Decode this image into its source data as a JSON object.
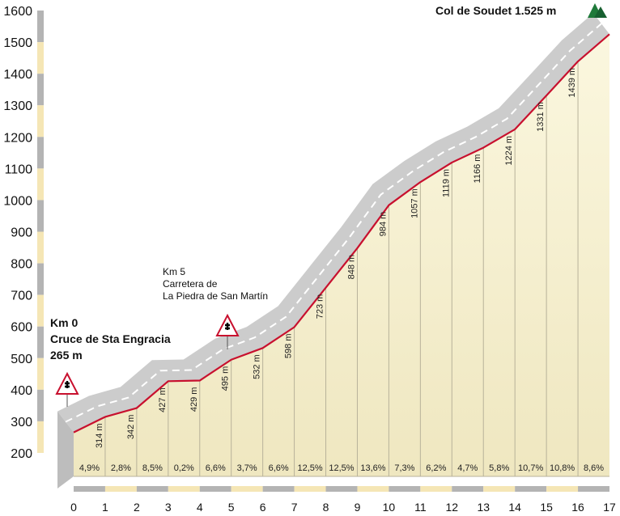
{
  "chart_data": {
    "type": "area",
    "title": "",
    "xlabel": "",
    "ylabel": "",
    "xlim": [
      0,
      17
    ],
    "ylim": [
      200,
      1600
    ],
    "y_ticks": [
      "1600",
      "1500",
      "1400",
      "1300",
      "1200",
      "1100",
      "1000",
      "900",
      "800",
      "700",
      "600",
      "500",
      "400",
      "300",
      "200"
    ],
    "x_ticks": [
      "0",
      "1",
      "2",
      "3",
      "4",
      "5",
      "6",
      "7",
      "8",
      "9",
      "10",
      "11",
      "12",
      "13",
      "14",
      "15",
      "16",
      "17"
    ],
    "x": [
      0,
      1,
      2,
      3,
      4,
      5,
      6,
      7,
      8,
      9,
      10,
      11,
      12,
      13,
      14,
      15,
      16,
      17
    ],
    "values": [
      265,
      314,
      342,
      427,
      429,
      495,
      532,
      598,
      723,
      848,
      984,
      1057,
      1119,
      1166,
      1224,
      1331,
      1439,
      1525
    ],
    "elevation_labels": [
      "314 m",
      "342 m",
      "427 m",
      "429 m",
      "495 m",
      "532 m",
      "598 m",
      "723 m",
      "848 m",
      "984 m",
      "1057 m",
      "1119 m",
      "1166 m",
      "1224 m",
      "1331 m",
      "1439 m"
    ],
    "gradient_labels": [
      "4,9%",
      "2,8%",
      "8,5%",
      "0,2%",
      "6,6%",
      "3,7%",
      "6,6%",
      "12,5%",
      "12,5%",
      "13,6%",
      "7,3%",
      "6,2%",
      "4,7%",
      "5,8%",
      "10,7%",
      "10,8%",
      "8,6%"
    ],
    "annotations": {
      "start_line1": "Km 0",
      "start_line2": "Cruce de Sta Engracia",
      "start_line3": "265 m",
      "km5_line1": "Km 5",
      "km5_line2": "Carretera de",
      "km5_line3": "La Piedra de San Martín",
      "summit": "Col de Soudet 1.525 m"
    },
    "colors": {
      "profile_line": "#c8102e",
      "fill": "#faf6dc",
      "road": "#cccccc",
      "axis_gray": "#b4b4b4",
      "axis_cream": "#f5e6b5",
      "summit_icon": "#1f7a3a"
    }
  }
}
